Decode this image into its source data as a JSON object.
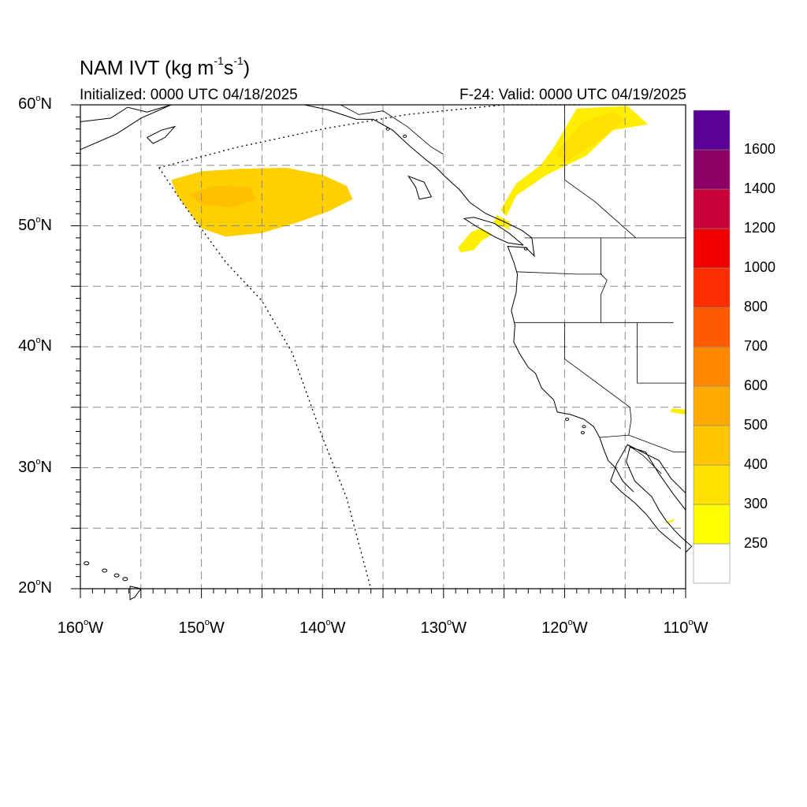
{
  "title": {
    "text": "NAM IVT (kg m",
    "unit_sup1": "-1",
    "unit_mid": "s",
    "unit_sup2": "-1",
    "close": ")"
  },
  "init_time": "Initialized: 0000 UTC 04/18/2025",
  "valid_time": "F-24: Valid: 0000 UTC 04/19/2025",
  "map": {
    "lon_range": [
      -160,
      -110
    ],
    "lat_range": [
      20,
      60
    ],
    "lat_labels": [
      {
        "value": 60,
        "text": "60",
        "hemi": "N"
      },
      {
        "value": 50,
        "text": "50",
        "hemi": "N"
      },
      {
        "value": 40,
        "text": "40",
        "hemi": "N"
      },
      {
        "value": 30,
        "text": "30",
        "hemi": "N"
      },
      {
        "value": 20,
        "text": "20",
        "hemi": "N"
      }
    ],
    "lon_labels": [
      {
        "value": -160,
        "text": "160",
        "hemi": "W"
      },
      {
        "value": -150,
        "text": "150",
        "hemi": "W"
      },
      {
        "value": -140,
        "text": "140",
        "hemi": "W"
      },
      {
        "value": -130,
        "text": "130",
        "hemi": "W"
      },
      {
        "value": -120,
        "text": "120",
        "hemi": "W"
      },
      {
        "value": -110,
        "text": "110",
        "hemi": "W"
      }
    ],
    "gridlines": "dashed every 5 degrees",
    "domain_boundary": "dotted"
  },
  "colorbar": {
    "labels": [
      "250",
      "300",
      "400",
      "500",
      "600",
      "700",
      "800",
      "1000",
      "1200",
      "1400",
      "1600"
    ],
    "colors": [
      "#ffffff",
      "#ffff00",
      "#ffe100",
      "#ffc800",
      "#ffaa00",
      "#ff8700",
      "#ff5a00",
      "#ff2d00",
      "#f00000",
      "#c8003c",
      "#8c0064",
      "#5a0096"
    ]
  }
}
